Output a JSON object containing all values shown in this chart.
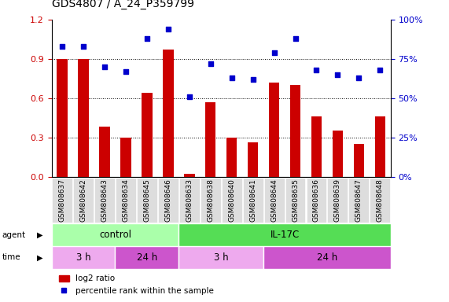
{
  "title": "GDS4807 / A_24_P359799",
  "samples": [
    "GSM808637",
    "GSM808642",
    "GSM808643",
    "GSM808634",
    "GSM808645",
    "GSM808646",
    "GSM808633",
    "GSM808638",
    "GSM808640",
    "GSM808641",
    "GSM808644",
    "GSM808635",
    "GSM808636",
    "GSM808639",
    "GSM808647",
    "GSM808648"
  ],
  "log2_ratio": [
    0.9,
    0.9,
    0.38,
    0.3,
    0.64,
    0.97,
    0.02,
    0.57,
    0.3,
    0.26,
    0.72,
    0.7,
    0.46,
    0.35,
    0.25,
    0.46
  ],
  "percentile": [
    83,
    83,
    70,
    67,
    88,
    94,
    51,
    72,
    63,
    62,
    79,
    88,
    68,
    65,
    63,
    68
  ],
  "ylim_left": [
    0,
    1.2
  ],
  "ylim_right": [
    0,
    100
  ],
  "yticks_left": [
    0,
    0.3,
    0.6,
    0.9,
    1.2
  ],
  "yticks_right": [
    0,
    25,
    50,
    75,
    100
  ],
  "ytick_labels_right": [
    "0%",
    "25%",
    "50%",
    "75%",
    "100%"
  ],
  "bar_color": "#cc0000",
  "dot_color": "#0000cc",
  "agent_groups": [
    {
      "label": "control",
      "start": 0,
      "end": 6,
      "color": "#aaffaa"
    },
    {
      "label": "IL-17C",
      "start": 6,
      "end": 16,
      "color": "#55dd55"
    }
  ],
  "time_groups": [
    {
      "label": "3 h",
      "start": 0,
      "end": 3,
      "color": "#eeaaee"
    },
    {
      "label": "24 h",
      "start": 3,
      "end": 6,
      "color": "#cc55cc"
    },
    {
      "label": "3 h",
      "start": 6,
      "end": 10,
      "color": "#eeaaee"
    },
    {
      "label": "24 h",
      "start": 10,
      "end": 16,
      "color": "#cc55cc"
    }
  ],
  "legend_bar_label": "log2 ratio",
  "legend_dot_label": "percentile rank within the sample",
  "title_fontsize": 10,
  "tick_label_color_left": "#cc0000",
  "tick_label_color_right": "#0000cc",
  "xtick_bg_color": "#dddddd",
  "plot_bg": "#ffffff"
}
